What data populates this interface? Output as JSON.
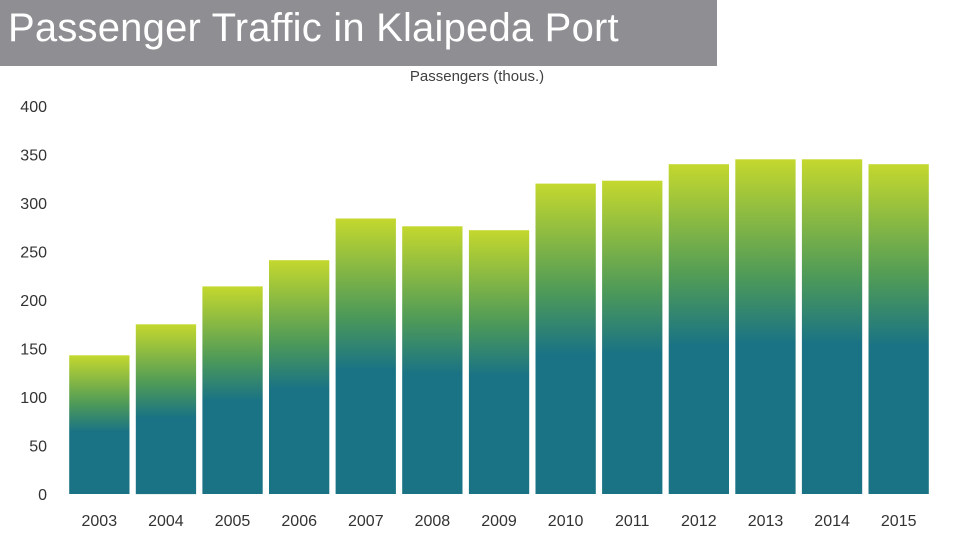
{
  "header": {
    "title": "Passenger Traffic in Klaipeda Port"
  },
  "colors": {
    "title_bg": "#8e8e93",
    "bar_top": "#c4d82e",
    "bar_mid": "#4e9a58",
    "bar_bottom": "#1a7384"
  },
  "chart_data": {
    "type": "bar",
    "title": "",
    "subtitle": "Passengers (thous.)",
    "categories": [
      "2003",
      "2004",
      "2005",
      "2006",
      "2007",
      "2008",
      "2009",
      "2010",
      "2011",
      "2012",
      "2013",
      "2014",
      "2015"
    ],
    "values": [
      143,
      175,
      214,
      241,
      284,
      276,
      272,
      320,
      323,
      340,
      345,
      345,
      340
    ],
    "ylim": [
      0,
      400
    ],
    "yticks": [
      0,
      50,
      100,
      150,
      200,
      250,
      300,
      350,
      400
    ],
    "grid": false,
    "legend": "none"
  }
}
